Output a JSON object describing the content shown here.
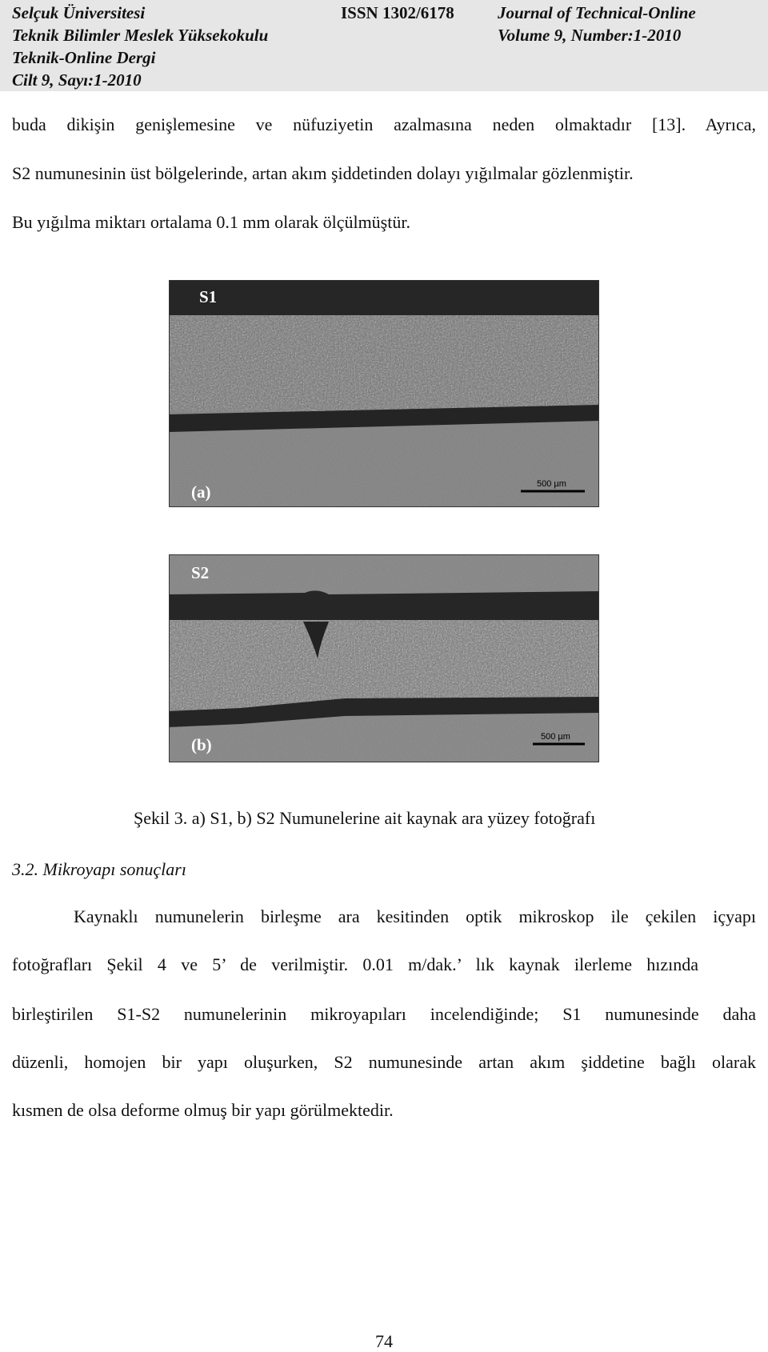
{
  "header": {
    "left": [
      "Selçuk Üniversitesi",
      "Teknik Bilimler Meslek Yüksekokulu",
      "Teknik-Online Dergi",
      "Cilt 9, Sayı:1-2010"
    ],
    "center": "ISSN 1302/6178",
    "right": [
      "Journal of  Technical-Online",
      "Volume 9, Number:1-2010"
    ]
  },
  "intro_lines": [
    "buda dikişin genişlemesine ve nüfuziyetin azalmasına neden olmaktadır [13]. Ayrıca,",
    "S2 numunesinin üst bölgelerinde, artan akım şiddetinden dolayı yığılmalar gözlenmiştir.",
    "Bu yığılma miktarı ortalama 0.1 mm olarak ölçülmüştür."
  ],
  "figure": {
    "panels": [
      {
        "label": "S1",
        "sublabel": "(a)",
        "scale_bar": "500 µm"
      },
      {
        "label": "S2",
        "sublabel": "(b)",
        "scale_bar": "500 µm"
      }
    ],
    "caption": "Şekil 3.  a) S1,  b) S2 Numunelerine ait kaynak ara yüzey fotoğrafı"
  },
  "section_heading": "3.2. Mikroyapı sonuçları",
  "paragraph_lines": [
    "Kaynaklı numunelerin birleşme ara kesitinden optik mikroskop ile çekilen içyapı",
    "fotoğrafları Şekil 4 ve 5’ de verilmiştir. 0.01 m/dak.’ lık kaynak ilerleme hızında",
    "birleştirilen S1-S2 numunelerinin mikroyapıları incelendiğinde; S1 numunesinde daha",
    "düzenli, homojen bir yapı oluşurken, S2 numunesinde artan akım şiddetine bağlı olarak",
    "kısmen de olsa deforme olmuş bir yapı görülmektedir."
  ],
  "page_number": "74"
}
